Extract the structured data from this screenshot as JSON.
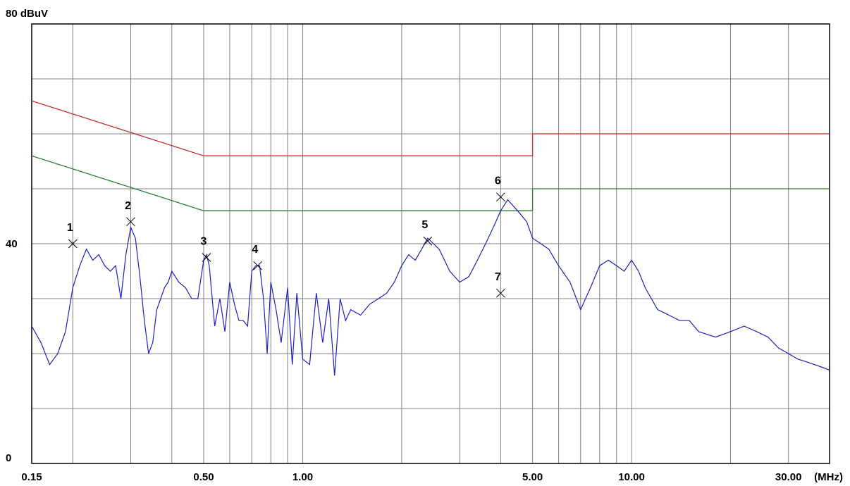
{
  "chart_data": {
    "type": "line",
    "title": "",
    "ylabel": "80 dBuV",
    "xlabel": "(MHz)",
    "x_scale": "log",
    "xlim": [
      0.15,
      40
    ],
    "ylim": [
      0,
      80
    ],
    "grid": true,
    "y_ticks": [
      {
        "value": 80,
        "label": "80 dBuV"
      },
      {
        "value": 40,
        "label": "40"
      },
      {
        "value": 0,
        "label": "0"
      }
    ],
    "y_gridlines": [
      0,
      10,
      20,
      30,
      40,
      50,
      60,
      70,
      80
    ],
    "x_ticks": [
      {
        "value": 0.15,
        "label": "0.15"
      },
      {
        "value": 0.5,
        "label": "0.50"
      },
      {
        "value": 1,
        "label": "1.00"
      },
      {
        "value": 5,
        "label": "5.00"
      },
      {
        "value": 10,
        "label": "10.00"
      },
      {
        "value": 30,
        "label": "30.00"
      }
    ],
    "x_gridlines": [
      0.2,
      0.3,
      0.4,
      0.5,
      0.6,
      0.7,
      0.8,
      0.9,
      1,
      2,
      3,
      4,
      5,
      6,
      7,
      8,
      9,
      10,
      20,
      30
    ],
    "series": [
      {
        "color": "#c03030",
        "x": [
          0.15,
          0.5,
          0.5,
          5,
          5,
          40
        ],
        "y": [
          66,
          56,
          56,
          56,
          60,
          60
        ]
      },
      {
        "color": "#2e7d32",
        "x": [
          0.15,
          0.5,
          0.5,
          5,
          5,
          40
        ],
        "y": [
          56,
          46,
          46,
          46,
          50,
          50
        ]
      },
      {
        "color": "#1f1fbf",
        "x": [
          0.15,
          0.16,
          0.17,
          0.18,
          0.19,
          0.2,
          0.21,
          0.22,
          0.23,
          0.24,
          0.25,
          0.26,
          0.27,
          0.28,
          0.29,
          0.3,
          0.31,
          0.32,
          0.33,
          0.34,
          0.35,
          0.36,
          0.37,
          0.38,
          0.39,
          0.4,
          0.42,
          0.44,
          0.46,
          0.48,
          0.5,
          0.51,
          0.52,
          0.54,
          0.56,
          0.58,
          0.6,
          0.62,
          0.64,
          0.66,
          0.68,
          0.7,
          0.72,
          0.74,
          0.76,
          0.78,
          0.8,
          0.83,
          0.86,
          0.9,
          0.93,
          0.96,
          1.0,
          1.05,
          1.1,
          1.15,
          1.2,
          1.25,
          1.3,
          1.35,
          1.4,
          1.5,
          1.6,
          1.7,
          1.8,
          1.9,
          2.0,
          2.1,
          2.2,
          2.3,
          2.4,
          2.5,
          2.6,
          2.7,
          2.8,
          3.0,
          3.2,
          3.4,
          3.6,
          3.8,
          4.0,
          4.2,
          4.5,
          4.8,
          5.0,
          5.3,
          5.6,
          6.0,
          6.5,
          7.0,
          7.5,
          8.0,
          8.5,
          9.0,
          9.5,
          10.0,
          10.5,
          11.0,
          12.0,
          13.0,
          14.0,
          15.0,
          16.0,
          18.0,
          20.0,
          22.0,
          24.0,
          26.0,
          28.0,
          30.0,
          32.0,
          34.0,
          36.0,
          38.0,
          40.0
        ],
        "y": [
          25,
          22,
          18,
          20,
          24,
          32,
          36,
          39,
          37,
          38,
          36,
          35,
          36,
          30,
          38,
          43,
          41,
          34,
          26,
          20,
          22,
          28,
          30,
          32,
          33,
          35,
          33,
          32,
          30,
          30,
          37,
          38,
          36,
          25,
          30,
          24,
          33,
          29,
          26,
          26,
          25,
          35,
          36,
          36,
          30,
          20,
          33,
          28,
          22,
          32,
          18,
          31,
          19,
          18,
          31,
          22,
          30,
          16,
          30,
          26,
          28,
          27,
          29,
          30,
          31,
          33,
          36,
          38,
          37,
          39,
          41,
          40,
          39,
          37,
          35,
          33,
          34,
          37,
          40,
          43,
          46,
          48,
          46,
          44,
          41,
          40,
          39,
          36,
          33,
          28,
          32,
          36,
          37,
          36,
          35,
          37,
          35,
          32,
          28,
          27,
          26,
          26,
          24,
          23,
          24,
          25,
          24,
          23,
          21,
          20,
          19,
          18.5,
          18,
          17.5,
          17
        ]
      }
    ],
    "markers": [
      {
        "label": "1",
        "x": 0.2,
        "y": 40
      },
      {
        "label": "2",
        "x": 0.3,
        "y": 44
      },
      {
        "label": "3",
        "x": 0.51,
        "y": 37.5
      },
      {
        "label": "4",
        "x": 0.73,
        "y": 36
      },
      {
        "label": "5",
        "x": 2.4,
        "y": 40.5
      },
      {
        "label": "6",
        "x": 4.0,
        "y": 48.5
      },
      {
        "label": "7",
        "x": 4.0,
        "y": 31
      }
    ]
  }
}
